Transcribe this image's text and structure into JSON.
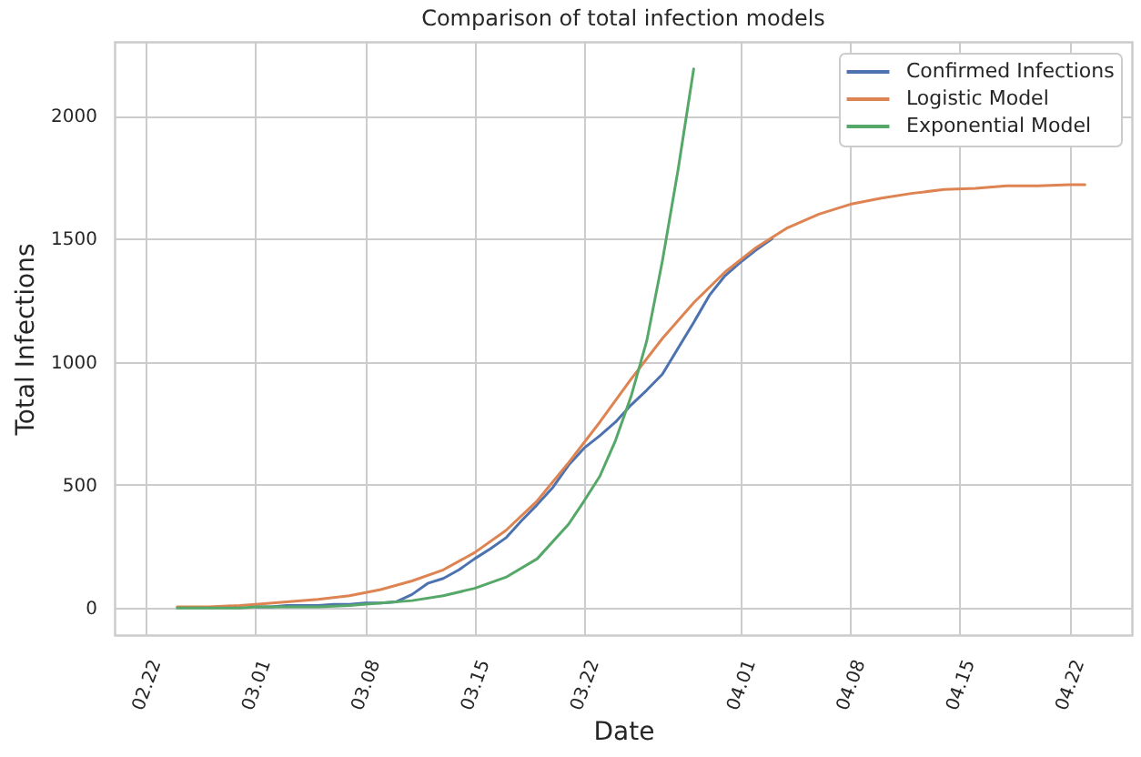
{
  "chart_data": {
    "type": "line",
    "title": "Comparison of total infection models",
    "xlabel": "Date",
    "ylabel": "Total Infections",
    "xlim": [
      "--02-20",
      "--04-26"
    ],
    "xticks": [
      {
        "value": "--02-22",
        "label": "02.22"
      },
      {
        "value": "--03-01",
        "label": "03.01"
      },
      {
        "value": "--03-08",
        "label": "03.08"
      },
      {
        "value": "--03-15",
        "label": "03.15"
      },
      {
        "value": "--03-22",
        "label": "03.22"
      },
      {
        "value": "--04-01",
        "label": "04.01"
      },
      {
        "value": "--04-08",
        "label": "04.08"
      },
      {
        "value": "--04-15",
        "label": "04.15"
      },
      {
        "value": "--04-22",
        "label": "04.22"
      }
    ],
    "ylim": [
      -110,
      2300
    ],
    "yticks": [
      0,
      500,
      1000,
      1500,
      2000
    ],
    "grid": true,
    "legend": "top right",
    "series": [
      {
        "name": "Confirmed Infections",
        "color": "#4c72b0",
        "x": [
          "--03-01",
          "--03-02",
          "--03-03",
          "--03-04",
          "--03-05",
          "--03-06",
          "--03-07",
          "--03-08",
          "--03-09",
          "--03-10",
          "--03-11",
          "--03-12",
          "--03-13",
          "--03-14",
          "--03-15",
          "--03-16",
          "--03-17",
          "--03-18",
          "--03-19",
          "--03-20",
          "--03-21",
          "--03-22",
          "--03-23",
          "--03-24",
          "--03-25",
          "--03-26",
          "--03-27",
          "--03-28",
          "--03-29",
          "--03-30",
          "--03-31",
          "--04-01",
          "--04-02",
          "--04-03"
        ],
        "values": [
          5,
          5,
          10,
          10,
          10,
          15,
          15,
          20,
          20,
          25,
          55,
          100,
          120,
          155,
          200,
          240,
          285,
          355,
          420,
          490,
          580,
          650,
          700,
          755,
          825,
          885,
          950,
          1055,
          1160,
          1270,
          1350,
          1405,
          1455,
          1500
        ]
      },
      {
        "name": "Logistic Model",
        "color": "#dd8452",
        "x": [
          "--02-24",
          "--02-26",
          "--02-28",
          "--03-01",
          "--03-03",
          "--03-05",
          "--03-07",
          "--03-09",
          "--03-11",
          "--03-13",
          "--03-15",
          "--03-17",
          "--03-19",
          "--03-21",
          "--03-23",
          "--03-25",
          "--03-27",
          "--03-29",
          "--03-31",
          "--04-02",
          "--04-04",
          "--04-06",
          "--04-08",
          "--04-10",
          "--04-12",
          "--04-14",
          "--04-16",
          "--04-18",
          "--04-20",
          "--04-22",
          "--04-23"
        ],
        "values": [
          5,
          5,
          10,
          15,
          25,
          35,
          50,
          75,
          110,
          155,
          225,
          315,
          435,
          590,
          755,
          930,
          1095,
          1240,
          1365,
          1465,
          1545,
          1600,
          1640,
          1665,
          1685,
          1700,
          1705,
          1715,
          1715,
          1720,
          1720
        ]
      },
      {
        "name": "Exponential Model",
        "color": "#55a868",
        "x": [
          "--02-24",
          "--02-26",
          "--02-28",
          "--03-01",
          "--03-03",
          "--03-05",
          "--03-07",
          "--03-09",
          "--03-11",
          "--03-13",
          "--03-15",
          "--03-17",
          "--03-19",
          "--03-21",
          "--03-22",
          "--03-23",
          "--03-24",
          "--03-25",
          "--03-26",
          "--03-27",
          "--03-28",
          "--03-29"
        ],
        "values": [
          0,
          0,
          0,
          5,
          5,
          5,
          10,
          20,
          30,
          50,
          80,
          125,
          200,
          340,
          435,
          535,
          680,
          860,
          1085,
          1410,
          1780,
          2190
        ]
      }
    ]
  }
}
